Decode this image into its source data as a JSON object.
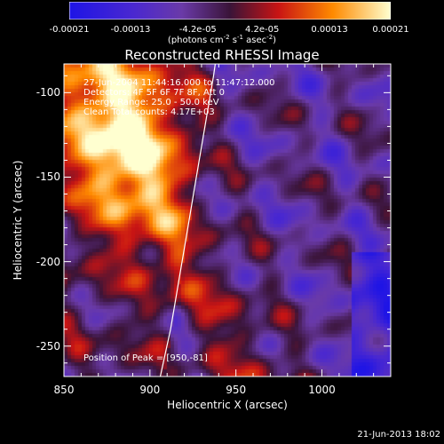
{
  "colorbar": {
    "ticks": [
      "-0.00021",
      "-0.00013",
      "-4.2e-05",
      "4.2e-05",
      "0.00013",
      "0.00021"
    ],
    "tick_values": [
      -0.00021,
      -0.00013,
      -4.2e-05,
      4.2e-05,
      0.00013,
      0.00021
    ],
    "range": [
      -0.00021,
      0.00021
    ],
    "unit_main": "(photons cm",
    "unit_exp1": "-2",
    "unit_mid": " s",
    "unit_exp2": "-1",
    "unit_mid2": " asec",
    "unit_exp3": "-2",
    "unit_end": ")"
  },
  "chart_data": {
    "type": "heatmap",
    "title": "Reconstructed RHESSI Image",
    "xlabel": "Heliocentric X (arcsec)",
    "ylabel": "Heliocentric Y (arcsec)",
    "xlim": [
      850,
      1040
    ],
    "ylim": [
      -268,
      -83
    ],
    "x_ticks": [
      850,
      900,
      950,
      1000
    ],
    "y_ticks": [
      -100,
      -150,
      -200,
      -250
    ],
    "annotations": [
      "27-Jun-2004 11:44:16.000 to 11:47:12.000",
      "Detectors: 4F 5F 6F 7F 8F, Att 0",
      "Energy Range: 25.0 - 50.0 keV",
      "Clean     Total counts: 4.17E+03"
    ],
    "peak_text": "Position of Peak = [950,-81]",
    "limb_curve": [
      [
        906,
        -268
      ],
      [
        912,
        -240
      ],
      [
        917,
        -210
      ],
      [
        922,
        -180
      ],
      [
        927,
        -150
      ],
      [
        932,
        -120
      ],
      [
        937,
        -90
      ],
      [
        938,
        -83
      ]
    ]
  },
  "footer": {
    "timestamp": "21-Jun-2013 18:02"
  }
}
